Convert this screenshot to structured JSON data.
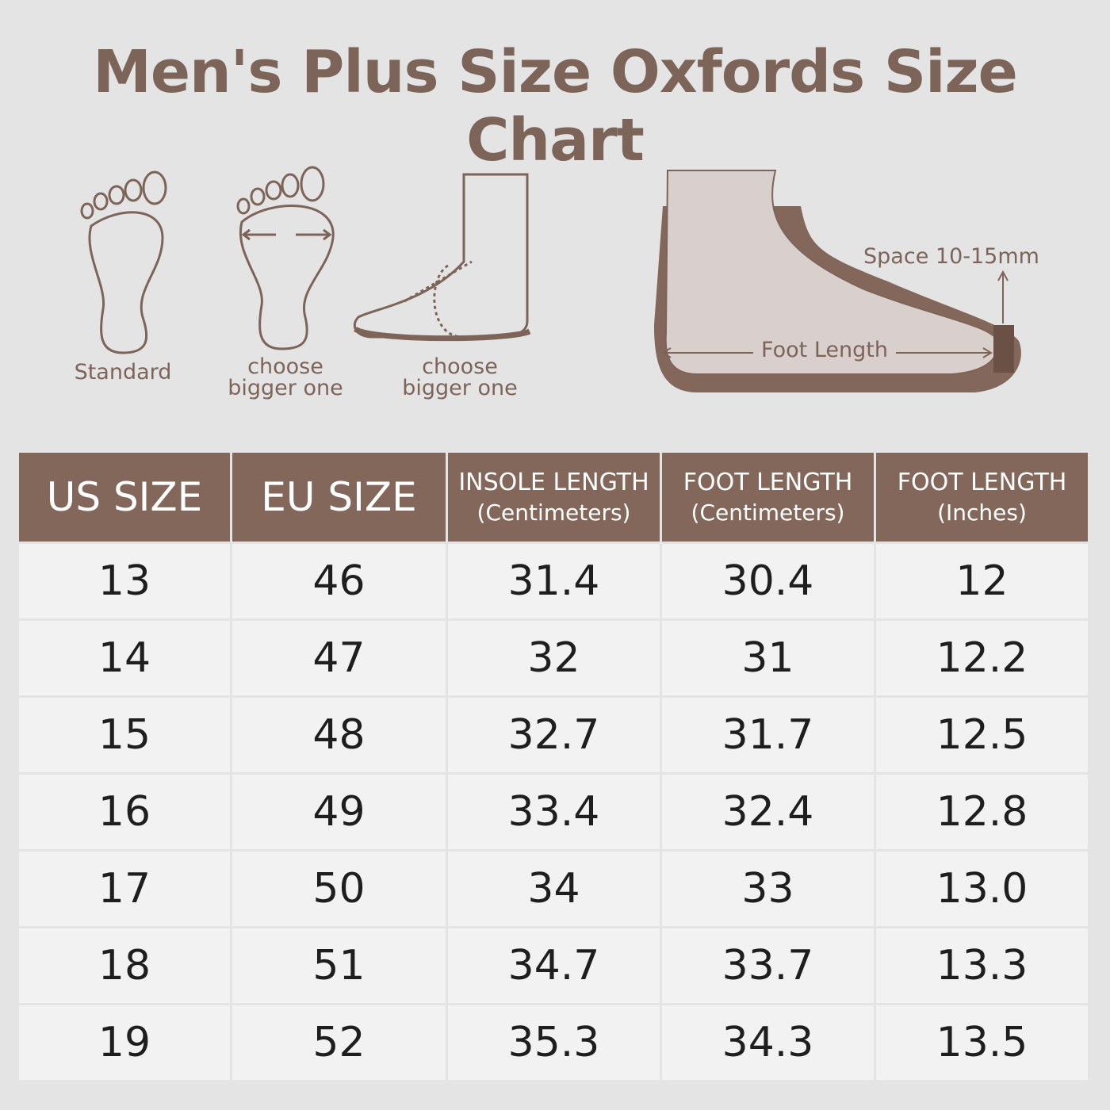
{
  "title": "Men's Plus Size Oxfords Size Chart",
  "illustrations": {
    "standard": "Standard",
    "wide": [
      "choose",
      "bigger one"
    ],
    "high_instep": [
      "choose",
      "bigger one"
    ],
    "space": "Space 10-15mm",
    "foot_length": "Foot Length"
  },
  "table": {
    "headers": [
      {
        "title": "US SIZE"
      },
      {
        "title": "EU SIZE"
      },
      {
        "title": "INSOLE LENGTH",
        "unit": "(Centimeters)"
      },
      {
        "title": "FOOT LENGTH",
        "unit": "(Centimeters)"
      },
      {
        "title": "FOOT LENGTH",
        "unit": "(Inches)"
      }
    ],
    "rows": [
      [
        "13",
        "46",
        "31.4",
        "30.4",
        "12"
      ],
      [
        "14",
        "47",
        "32",
        "31",
        "12.2"
      ],
      [
        "15",
        "48",
        "32.7",
        "31.7",
        "12.5"
      ],
      [
        "16",
        "49",
        "33.4",
        "32.4",
        "12.8"
      ],
      [
        "17",
        "50",
        "34",
        "33",
        "13.0"
      ],
      [
        "18",
        "51",
        "34.7",
        "33.7",
        "13.3"
      ],
      [
        "19",
        "52",
        "35.3",
        "34.3",
        "13.5"
      ]
    ]
  }
}
